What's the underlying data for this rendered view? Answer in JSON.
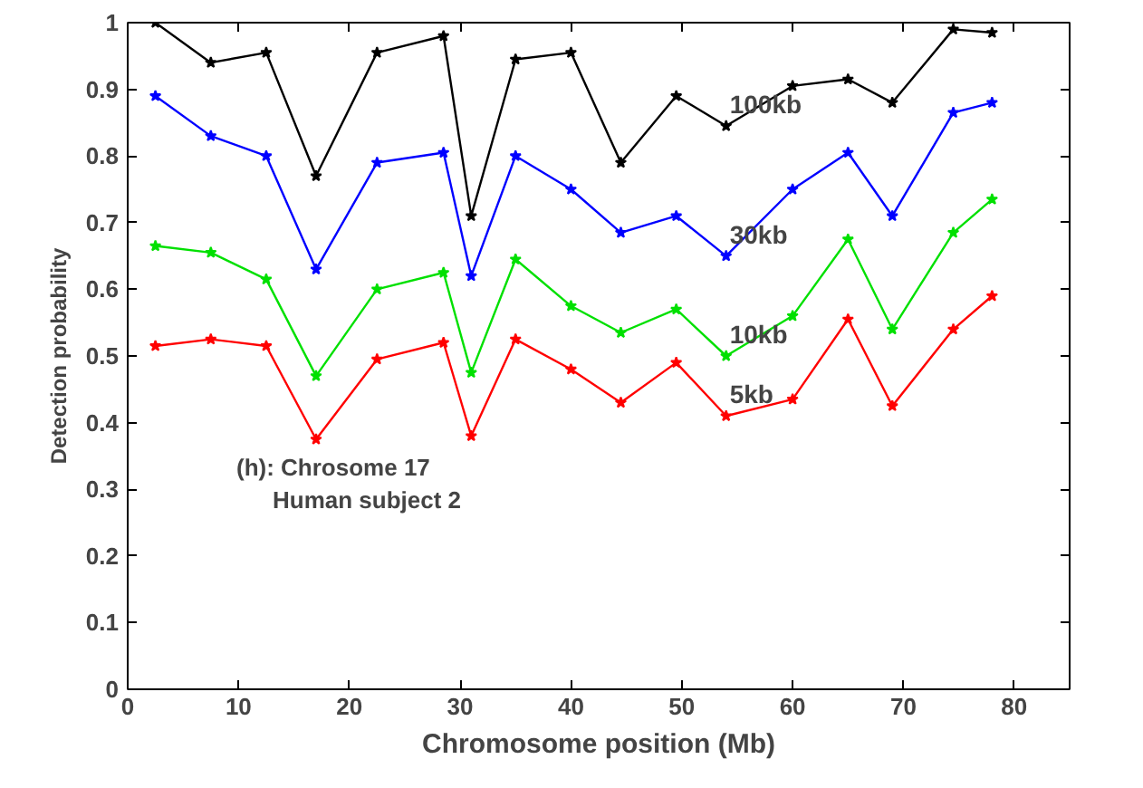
{
  "chart_data": {
    "type": "line",
    "xlabel": "Chromosome position (Mb)",
    "ylabel": "Detection probability",
    "x": [
      2.5,
      7.5,
      12.5,
      17,
      22.5,
      28.5,
      31,
      35,
      40,
      44.5,
      49.5,
      54,
      60,
      65,
      69,
      74.5,
      78
    ],
    "series": [
      {
        "name": "100kb",
        "color": "#000000",
        "values": [
          1.0,
          0.94,
          0.955,
          0.77,
          0.955,
          0.98,
          0.71,
          0.945,
          0.955,
          0.79,
          0.89,
          0.845,
          0.905,
          0.915,
          0.88,
          0.99,
          0.985
        ]
      },
      {
        "name": "30kb",
        "color": "#0000ff",
        "values": [
          0.89,
          0.83,
          0.8,
          0.63,
          0.79,
          0.805,
          0.62,
          0.8,
          0.75,
          0.685,
          0.71,
          0.65,
          0.75,
          0.805,
          0.71,
          0.865,
          0.88
        ]
      },
      {
        "name": "10kb",
        "color": "#00e000",
        "values": [
          0.665,
          0.655,
          0.615,
          0.47,
          0.6,
          0.625,
          0.475,
          0.645,
          0.575,
          0.535,
          0.57,
          0.5,
          0.56,
          0.675,
          0.54,
          0.685,
          0.735
        ]
      },
      {
        "name": "5kb",
        "color": "#ff0000",
        "values": [
          0.515,
          0.525,
          0.515,
          0.375,
          0.495,
          0.52,
          0.38,
          0.525,
          0.48,
          0.43,
          0.49,
          0.41,
          0.435,
          0.555,
          0.425,
          0.54,
          0.59
        ]
      }
    ],
    "xlim": [
      0,
      85
    ],
    "ylim": [
      0,
      1
    ],
    "xticks": [
      0,
      10,
      20,
      30,
      40,
      50,
      60,
      70,
      80
    ],
    "yticks": [
      0,
      {
        "value": 0.1,
        "label": "0.1"
      },
      {
        "value": 0.2,
        "label": "0.2"
      },
      {
        "value": 0.3,
        "label": "0.3"
      },
      {
        "value": 0.4,
        "label": "0.4"
      },
      {
        "value": 0.5,
        "label": "0.5"
      },
      {
        "value": 0.6,
        "label": "0.6"
      },
      {
        "value": 0.7,
        "label": "0.7"
      },
      {
        "value": 0.8,
        "label": "0.8"
      },
      {
        "value": 0.9,
        "label": "0.9"
      },
      1
    ],
    "annotations": [
      "(h): Chrosome 17",
      "Human subject 2"
    ],
    "marker": "star",
    "line_style": "solid",
    "grid": false
  }
}
